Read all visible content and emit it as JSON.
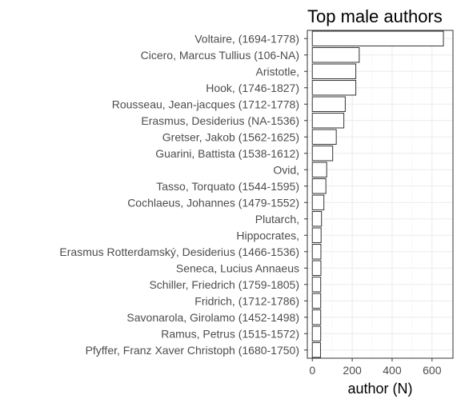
{
  "chart_data": {
    "type": "bar",
    "orientation": "horizontal",
    "title": "Top male authors",
    "xlabel": "author (N)",
    "ylabel": "",
    "xlim": [
      0,
      700
    ],
    "xticks": [
      0,
      200,
      400,
      600
    ],
    "grid": true,
    "colors": {
      "bar_fill": "#ffffff",
      "bar_stroke": "#333333",
      "grid": "#ebebeb",
      "text": "#4d4d4d"
    },
    "categories": [
      "Voltaire,  (1694-1778)",
      "Cicero, Marcus Tullius (106-NA)",
      "Aristotle, ",
      "Hook,  (1746-1827)",
      "Rousseau, Jean-jacques (1712-1778)",
      "Erasmus, Desiderius (NA-1536)",
      "Gretser, Jakob (1562-1625)",
      "Guarini, Battista (1538-1612)",
      "Ovid, ",
      "Tasso, Torquato (1544-1595)",
      "Cochlaeus, Johannes (1479-1552)",
      "Plutarch, ",
      "Hippocrates, ",
      "Erasmus Rotterdamský, Desiderius (1466-1536)",
      "Seneca, Lucius Annaeus",
      "Schiller, Friedrich (1759-1805)",
      "Fridrich,  (1712-1786)",
      "Savonarola, Girolamo (1452-1498)",
      "Ramus, Petrus (1515-1572)",
      "Pfyffer, Franz Xaver Christoph (1680-1750)"
    ],
    "values": [
      657,
      235,
      218,
      218,
      165,
      158,
      120,
      102,
      72,
      68,
      58,
      46,
      44,
      43,
      43,
      42,
      42,
      42,
      42,
      41
    ]
  }
}
